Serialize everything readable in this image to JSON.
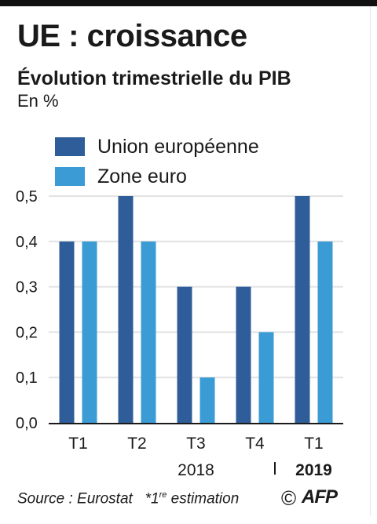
{
  "header": {
    "title": "UE : croissance",
    "subtitle": "Évolution trimestrielle du PIB",
    "unit": "En %"
  },
  "colors": {
    "union_europeenne": "#2f5d99",
    "zone_euro": "#3a9bd5",
    "grid": "#e2e2e2",
    "axis": "#1a1a1a"
  },
  "footer": {
    "source": "Source : Eurostat",
    "note_star": "*1",
    "note_sup": "re",
    "note_rest": " estimation",
    "copyright": "©",
    "logo": "AFP"
  },
  "chart_data": {
    "type": "bar",
    "categories": [
      "T1",
      "T2",
      "T3",
      "T4",
      "T1"
    ],
    "year_labels": [
      {
        "label": "2018",
        "bold": false
      },
      {
        "label": "2019",
        "bold": true
      }
    ],
    "series": [
      {
        "name": "Union européenne",
        "values": [
          0.4,
          0.5,
          0.3,
          0.3,
          0.5
        ]
      },
      {
        "name": "Zone euro",
        "values": [
          0.4,
          0.4,
          0.1,
          0.2,
          0.4
        ]
      }
    ],
    "yticks": [
      "0,0",
      "0,1",
      "0,2",
      "0,3",
      "0,4",
      "0,5"
    ],
    "ylim": [
      0,
      0.5
    ],
    "grid": true,
    "legend_position": "top-left"
  }
}
